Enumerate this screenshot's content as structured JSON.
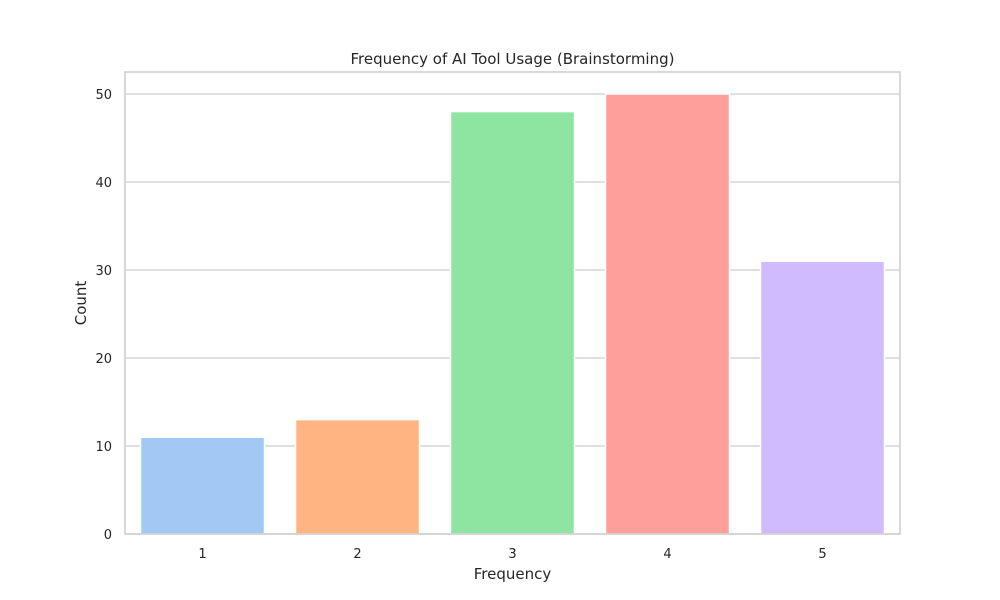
{
  "chart_data": {
    "type": "bar",
    "title": "Frequency of AI Tool Usage (Brainstorming)",
    "xlabel": "Frequency",
    "ylabel": "Count",
    "categories": [
      "1",
      "2",
      "3",
      "4",
      "5"
    ],
    "values": [
      11,
      13,
      48,
      50,
      31
    ],
    "ylim": [
      0,
      52.5
    ],
    "yticks": [
      0,
      10,
      20,
      30,
      40,
      50
    ],
    "grid": true,
    "colors": [
      "#a1c9f4",
      "#ffb482",
      "#8de5a1",
      "#ff9f9b",
      "#d0bbff"
    ]
  }
}
